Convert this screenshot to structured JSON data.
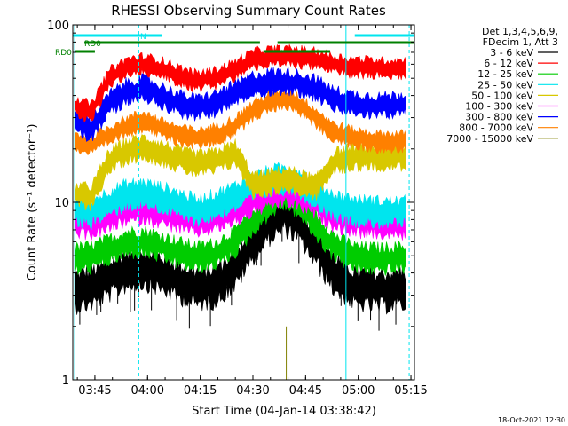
{
  "chart_data": {
    "type": "line",
    "title": "RHESSI Observing Summary Count Rates",
    "xlabel": "Start Time (04-Jan-14 03:38:42)",
    "ylabel": "Count Rate (s⁻¹ detector⁻¹)",
    "yscale": "log",
    "ylim": [
      1,
      100
    ],
    "xlim": [
      "03:38:42",
      "05:16:00"
    ],
    "x_ticks": [
      "03:45",
      "04:00",
      "04:15",
      "04:30",
      "04:45",
      "05:00",
      "05:15"
    ],
    "y_ticks": [
      "1",
      "10",
      "100"
    ],
    "legend_header": [
      "Det 1,3,4,5,6,9,",
      "FDecim 1, Att 3"
    ],
    "timestamp": "18-Oct-2021 12:30",
    "flags": [
      {
        "label": "N",
        "color": "#00e5ee",
        "segments": [
          [
            "03:38:42",
            "04:04:00"
          ],
          [
            "04:59:00",
            "05:16:00"
          ]
        ]
      },
      {
        "label": "RD0",
        "color": "#008000",
        "segments": [
          [
            "03:42:00",
            "04:32:00"
          ],
          [
            "04:37:00",
            "05:16:00"
          ]
        ]
      },
      {
        "label": "RD0",
        "color": "#008000",
        "segments": [
          [
            "03:39:30",
            "03:45:00"
          ],
          [
            "04:33:00",
            "04:52:00"
          ]
        ]
      }
    ],
    "vlines": [
      {
        "time": "03:39:15",
        "color": "#00e5ee",
        "style": "solid"
      },
      {
        "time": "03:57:30",
        "color": "#00e5ee",
        "style": "dashed"
      },
      {
        "time": "04:56:30",
        "color": "#00e5ee",
        "style": "solid"
      },
      {
        "time": "05:14:30",
        "color": "#00e5ee",
        "style": "dashed"
      }
    ],
    "series": [
      {
        "name": "3 - 6 keV",
        "color": "#000000",
        "values": [
          3.2,
          3.3,
          3.7,
          4.2,
          4.3,
          4.0,
          3.6,
          3.3,
          3.4,
          4.2,
          6.0,
          7.8,
          8.8,
          7.6,
          5.6,
          4.0,
          3.3,
          3.2,
          3.3
        ]
      },
      {
        "name": "6 - 12 keV",
        "color": "#ff0000",
        "values": [
          35,
          32,
          50,
          58,
          60,
          57,
          52,
          48,
          50,
          56,
          64,
          66,
          66,
          66,
          64,
          60,
          58,
          57,
          57
        ]
      },
      {
        "name": "12 - 25 keV",
        "color": "#00cc00",
        "values": [
          4.8,
          4.9,
          5.4,
          5.9,
          6.0,
          5.6,
          5.2,
          4.9,
          5.1,
          6.0,
          7.8,
          10.0,
          11.2,
          10.0,
          7.4,
          5.7,
          4.9,
          4.8,
          4.9
        ]
      },
      {
        "name": "25 - 50 keV",
        "color": "#00e5ee",
        "values": [
          9.0,
          8.8,
          10.0,
          11.0,
          11.2,
          10.6,
          9.8,
          9.0,
          9.6,
          10.8,
          12.2,
          13.2,
          13.6,
          13.0,
          11.2,
          9.6,
          9.0,
          8.8,
          8.8
        ]
      },
      {
        "name": "50 - 100 keV",
        "color": "#d8c800",
        "values": [
          11.0,
          10.8,
          17.0,
          19.5,
          20.5,
          19.0,
          17.5,
          16.5,
          17.0,
          19.0,
          12.5,
          13.0,
          13.5,
          13.0,
          12.0,
          17.0,
          18.0,
          18.0,
          18.0
        ]
      },
      {
        "name": "100 - 300 keV",
        "color": "#ff00ff",
        "values": [
          7.8,
          7.6,
          8.2,
          9.0,
          9.2,
          8.8,
          8.2,
          7.8,
          8.2,
          9.0,
          10.2,
          11.0,
          11.6,
          11.0,
          9.8,
          8.4,
          7.8,
          7.6,
          7.6
        ]
      },
      {
        "name": "300 - 800 keV",
        "color": "#0000ff",
        "values": [
          28,
          26,
          36,
          42,
          44,
          40,
          36,
          34,
          36,
          41,
          46,
          48,
          48,
          47,
          44,
          38,
          36,
          35,
          36
        ]
      },
      {
        "name": "800 - 7000 keV",
        "color": "#ff8000",
        "values": [
          22,
          21,
          24,
          27,
          29,
          26,
          24,
          23,
          24,
          27,
          33,
          37,
          39,
          36,
          30,
          25,
          23,
          22,
          22
        ]
      },
      {
        "name": "7000 - 15000 keV",
        "color": "#808000",
        "values": [
          1,
          1,
          1,
          1,
          1,
          1,
          1,
          1,
          1,
          1,
          1,
          1,
          1,
          1,
          1,
          1,
          1,
          1,
          1
        ]
      }
    ],
    "sample_times": [
      "03:39:30",
      "03:44:00",
      "03:49:00",
      "03:54:00",
      "03:59:00",
      "04:04:00",
      "04:09:00",
      "04:14:00",
      "04:19:00",
      "04:25:00",
      "04:30:00",
      "04:35:00",
      "04:39:00",
      "04:43:00",
      "04:48:00",
      "04:53:00",
      "04:59:00",
      "05:06:00",
      "05:14:00"
    ]
  }
}
